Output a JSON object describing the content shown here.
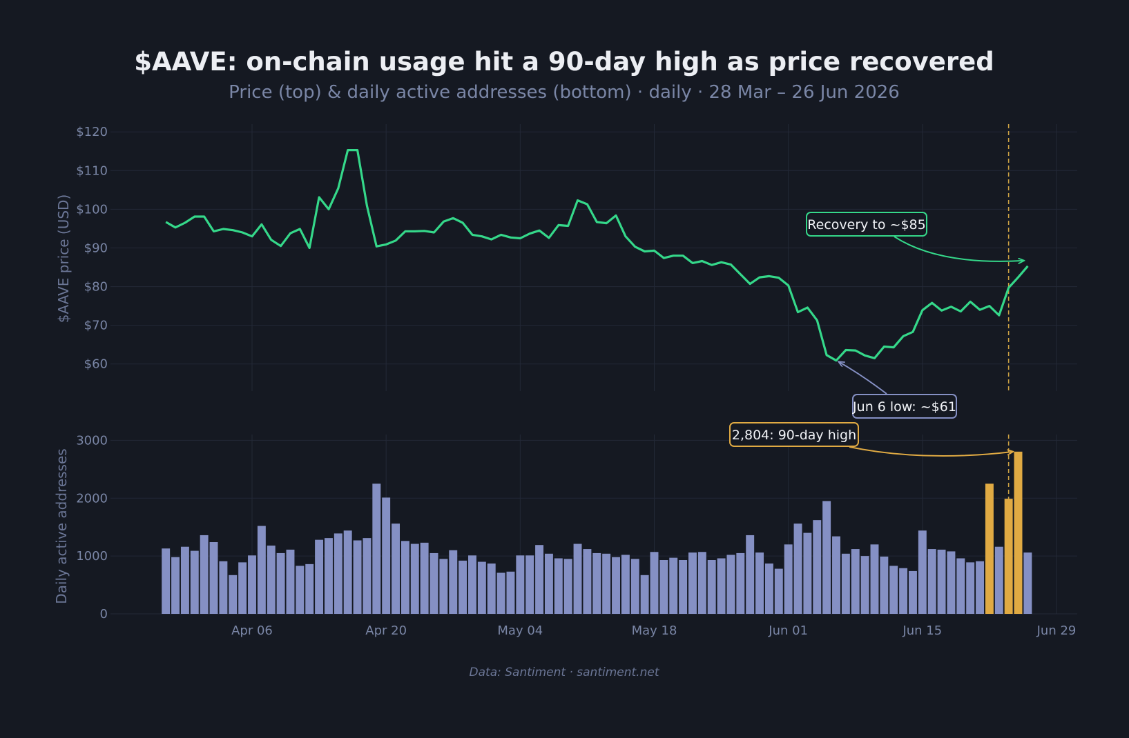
{
  "title": "$AAVE: on-chain usage hit a 90-day high as price recovered",
  "subtitle": "Price (top) & daily active addresses (bottom) · daily · 28 Mar – 26 Jun 2026",
  "footer": "Data: Santiment · santiment.net",
  "colors": {
    "background": "#151922",
    "price_line": "#35d88a",
    "bar_normal": "#8590c4",
    "bar_highlight": "#e0aa43",
    "low_annotation": "#8590c4",
    "vline": "#c9a043"
  },
  "chart_data": [
    {
      "type": "line",
      "panel": "top",
      "ylabel": "$AAVE price (USD)",
      "ylim": [
        53,
        122
      ],
      "yticks": [
        60,
        70,
        80,
        90,
        100,
        110,
        120
      ],
      "ytick_labels": [
        "$60",
        "$70",
        "$80",
        "$90",
        "$100",
        "$110",
        "$120"
      ],
      "grid": true,
      "x_start": "2026-03-28",
      "x_end": "2026-06-26",
      "series": [
        {
          "values": [
            96.7,
            95.3,
            96.5,
            98.1,
            98.1,
            94.3,
            94.9,
            94.6,
            94.0,
            93.0,
            96.1,
            92.1,
            90.5,
            93.8,
            94.9,
            90.0,
            103.1,
            100.0,
            105.4,
            115.3,
            115.3,
            100.9,
            90.4,
            90.9,
            91.9,
            94.3,
            94.3,
            94.4,
            94.0,
            96.8,
            97.7,
            96.5,
            93.4,
            93.0,
            92.2,
            93.4,
            92.7,
            92.5,
            93.7,
            94.5,
            92.6,
            95.9,
            95.7,
            102.3,
            101.3,
            96.7,
            96.4,
            98.4,
            93.0,
            90.3,
            89.1,
            89.3,
            87.4,
            88.0,
            88.0,
            86.1,
            86.6,
            85.6,
            86.3,
            85.7,
            83.2,
            80.7,
            82.4,
            82.7,
            82.3,
            80.3,
            73.4,
            74.6,
            71.3,
            62.3,
            60.9,
            63.6,
            63.5,
            62.2,
            61.5,
            64.5,
            64.3,
            67.2,
            68.3,
            73.9,
            75.8,
            73.8,
            74.8,
            73.6,
            76.1,
            74.0,
            75.0,
            72.6,
            79.7,
            82.4,
            85.3
          ]
        }
      ],
      "annotations": [
        {
          "text": "Recovery to ~$85",
          "date": "2026-06-26",
          "value": 85.3
        },
        {
          "text": "Jun 6 low: ~$61",
          "date": "2026-06-06",
          "value": 60.9
        }
      ]
    },
    {
      "type": "bar",
      "panel": "bottom",
      "ylabel": "Daily active addresses",
      "ylim": [
        0,
        3100
      ],
      "yticks": [
        0,
        1000,
        2000,
        3000
      ],
      "ytick_labels": [
        "0",
        "1000",
        "2000",
        "3000"
      ],
      "grid": true,
      "x_start": "2026-03-28",
      "xticks": [
        "Apr 06",
        "Apr 20",
        "May 04",
        "May 18",
        "Jun 01",
        "Jun 15",
        "Jun 29"
      ],
      "xtick_dates": [
        "2026-04-06",
        "2026-04-20",
        "2026-05-04",
        "2026-05-18",
        "2026-06-01",
        "2026-06-15",
        "2026-06-29"
      ],
      "values": [
        1130,
        980,
        1160,
        1090,
        1360,
        1240,
        910,
        670,
        890,
        1010,
        1520,
        1180,
        1050,
        1110,
        830,
        860,
        1280,
        1310,
        1390,
        1440,
        1270,
        1310,
        2250,
        2010,
        1560,
        1260,
        1210,
        1230,
        1050,
        950,
        1100,
        920,
        1010,
        900,
        870,
        710,
        730,
        1010,
        1010,
        1190,
        1040,
        960,
        950,
        1210,
        1120,
        1050,
        1040,
        980,
        1020,
        950,
        670,
        1070,
        930,
        970,
        930,
        1060,
        1070,
        930,
        960,
        1020,
        1050,
        1360,
        1060,
        870,
        780,
        1200,
        1560,
        1400,
        1620,
        1950,
        1340,
        1040,
        1120,
        1000,
        1200,
        990,
        830,
        790,
        740,
        1440,
        1120,
        1110,
        1080,
        960,
        890,
        910,
        2250,
        1160,
        1990,
        2804,
        1060
      ],
      "highlight_indices": [
        86,
        88,
        89
      ],
      "annotations": [
        {
          "text": "2,804: 90-day high",
          "date": "2026-06-25",
          "value": 2804
        }
      ]
    }
  ],
  "reference_line": {
    "date": "2026-06-24"
  }
}
